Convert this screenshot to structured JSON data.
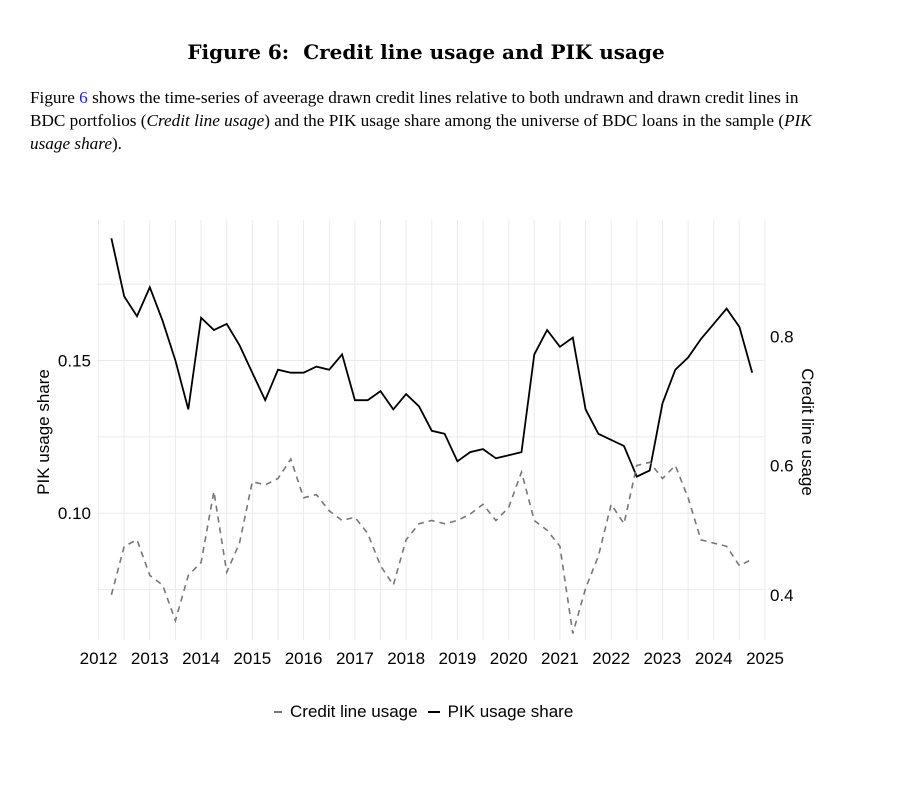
{
  "figure": {
    "label": "Figure 6:",
    "title": "Credit line usage and PIK usage"
  },
  "caption": {
    "part1": "Figure ",
    "ref": "6",
    "part2": " shows the time-series of aveerage drawn credit lines relative to both undrawn and drawn credit lines in BDC portfolios (",
    "italic1": "Credit line usage",
    "part3": ") and the PIK usage share among the universe of BDC loans in the sample (",
    "italic2": "PIK usage share",
    "part4": ")."
  },
  "colors": {
    "pik": "#000000",
    "credit": "#777777",
    "grid": "#ebebeb"
  },
  "chart_data": {
    "type": "line",
    "title": "",
    "xlabel": "",
    "x_ticks": [
      2012,
      2013,
      2014,
      2015,
      2016,
      2017,
      2018,
      2019,
      2020,
      2021,
      2022,
      2023,
      2024,
      2025
    ],
    "x_range": [
      2011.97,
      2025.0
    ],
    "left_axis": {
      "label": "PIK usage share",
      "range": [
        0.0585,
        0.196
      ],
      "ticks": [
        0.1,
        0.15
      ],
      "tick_labels": [
        "0.10",
        "0.15"
      ]
    },
    "right_axis": {
      "label": "Credit line usage",
      "range": [
        0.33,
        0.98
      ],
      "ticks": [
        0.4,
        0.6,
        0.8
      ],
      "tick_labels": [
        "0.4",
        "0.6",
        "0.8"
      ]
    },
    "legend": {
      "position": "bottom",
      "entries": [
        "Credit line usage",
        "PIK usage share"
      ]
    },
    "series": [
      {
        "name": "PIK usage share",
        "axis": "left",
        "style": "solid",
        "x": [
          2012.25,
          2012.5,
          2012.75,
          2013.0,
          2013.25,
          2013.5,
          2013.75,
          2014.0,
          2014.25,
          2014.5,
          2014.75,
          2015.0,
          2015.25,
          2015.5,
          2015.75,
          2016.0,
          2016.25,
          2016.5,
          2016.75,
          2017.0,
          2017.25,
          2017.5,
          2017.75,
          2018.0,
          2018.25,
          2018.5,
          2018.75,
          2019.0,
          2019.25,
          2019.5,
          2019.75,
          2020.0,
          2020.25,
          2020.5,
          2020.75,
          2021.0,
          2021.25,
          2021.5,
          2021.75,
          2022.0,
          2022.25,
          2022.5,
          2022.75,
          2023.0,
          2023.25,
          2023.5,
          2023.75,
          2024.0,
          2024.25,
          2024.5,
          2024.75
        ],
        "values": [
          0.19,
          0.171,
          0.1645,
          0.174,
          0.163,
          0.15,
          0.134,
          0.164,
          0.16,
          0.162,
          0.155,
          0.146,
          0.137,
          0.147,
          0.146,
          0.146,
          0.148,
          0.147,
          0.152,
          0.137,
          0.137,
          0.14,
          0.134,
          0.139,
          0.135,
          0.127,
          0.126,
          0.117,
          0.12,
          0.121,
          0.118,
          0.119,
          0.12,
          0.152,
          0.16,
          0.1545,
          0.1575,
          0.134,
          0.126,
          0.124,
          0.122,
          0.112,
          0.114,
          0.136,
          0.147,
          0.151,
          0.157,
          0.162,
          0.167,
          0.161,
          0.146
        ]
      },
      {
        "name": "Credit line usage",
        "axis": "right",
        "style": "dashed",
        "x": [
          2012.25,
          2012.5,
          2012.75,
          2013.0,
          2013.25,
          2013.5,
          2013.75,
          2014.0,
          2014.25,
          2014.5,
          2014.75,
          2015.0,
          2015.25,
          2015.5,
          2015.75,
          2016.0,
          2016.25,
          2016.5,
          2016.75,
          2017.0,
          2017.25,
          2017.5,
          2017.75,
          2018.0,
          2018.25,
          2018.5,
          2018.75,
          2019.0,
          2019.25,
          2019.5,
          2019.75,
          2020.0,
          2020.25,
          2020.5,
          2020.75,
          2021.0,
          2021.25,
          2021.5,
          2021.75,
          2022.0,
          2022.25,
          2022.5,
          2022.75,
          2023.0,
          2023.25,
          2023.5,
          2023.75,
          2024.0,
          2024.25,
          2024.5,
          2024.75
        ],
        "values": [
          0.4,
          0.475,
          0.485,
          0.43,
          0.415,
          0.36,
          0.43,
          0.45,
          0.56,
          0.435,
          0.48,
          0.575,
          0.57,
          0.58,
          0.61,
          0.55,
          0.555,
          0.53,
          0.515,
          0.52,
          0.495,
          0.445,
          0.415,
          0.485,
          0.51,
          0.515,
          0.51,
          0.515,
          0.525,
          0.54,
          0.515,
          0.535,
          0.59,
          0.515,
          0.5,
          0.475,
          0.34,
          0.41,
          0.46,
          0.54,
          0.51,
          0.6,
          0.605,
          0.58,
          0.6,
          0.55,
          0.485,
          0.48,
          0.475,
          0.445,
          0.455
        ]
      }
    ]
  }
}
